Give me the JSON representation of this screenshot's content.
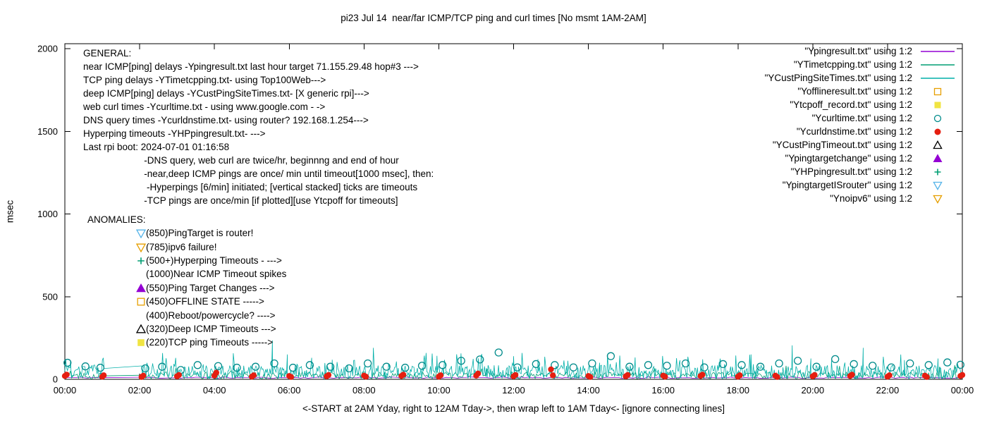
{
  "page": {
    "title": "pi23 Jul 14  near/far ICMP/TCP ping and curl times [No msmt 1AM-2AM]"
  },
  "colors": {
    "purple": "#9400D3",
    "green": "#009E73",
    "teal_line": "#00AFA8",
    "dark_cyan": "#008B8B",
    "orange": "#E69F00",
    "yellow": "#F0E442",
    "red": "#E51E10",
    "sky_blue": "#56B4E9",
    "black": "#000000"
  },
  "legend": [
    {
      "label": "\"Ypingresult.txt\" using 1:2",
      "marker": "line",
      "color": "#9400D3"
    },
    {
      "label": "\"YTimetcpping.txt\" using 1:2",
      "marker": "line",
      "color": "#009E73"
    },
    {
      "label": "\"YCustPingSiteTimes.txt\" using 1:2",
      "marker": "line",
      "color": "#00AFA8"
    },
    {
      "label": "\"Yofflineresult.txt\" using 1:2",
      "marker": "square-open",
      "color": "#E69F00"
    },
    {
      "label": "\"Ytcpoff_record.txt\" using 1:2",
      "marker": "square-filled",
      "color": "#F0E442"
    },
    {
      "label": "\"Ycurltime.txt\" using 1:2",
      "marker": "circle-open",
      "color": "#008B8B"
    },
    {
      "label": "\"Ycurldnstime.txt\" using 1:2",
      "marker": "circle-filled",
      "color": "#E51E10"
    },
    {
      "label": "\"YCustPingTimeout.txt\" using 1:2",
      "marker": "triangle-up-open",
      "color": "#000000"
    },
    {
      "label": "\"Ypingtargetchange\" using 1:2",
      "marker": "triangle-up-filled",
      "color": "#9400D3"
    },
    {
      "label": "\"YHPpingresult.txt\" using 1:2",
      "marker": "plus",
      "color": "#009E73"
    },
    {
      "label": "\"YpingtargetISrouter\" using 1:2",
      "marker": "triangle-down-open",
      "color": "#56B4E9"
    },
    {
      "label": "\"Ynoipv6\" using 1:2",
      "marker": "triangle-down-open",
      "color": "#E69F00"
    }
  ],
  "general_notes": [
    "GENERAL:",
    "near ICMP[ping] delays -Ypingresult.txt last hour target 71.155.29.48 hop#3 --->",
    "TCP ping delays -YTimetcpping.txt- using Top100Web--->",
    "deep ICMP[ping] delays -YCustPingSiteTimes.txt- [X generic rpi]--->",
    "web curl times -Ycurltime.txt - using www.google.com - ->",
    "DNS query times -Ycurldnstime.txt- using router? 192.168.1.254--->",
    "Hyperping timeouts -YHPpingresult.txt- --->",
    "Last rpi boot: 2024-07-01 01:16:58",
    "                       -DNS query, web curl are twice/hr, beginnng and end of hour",
    "                       -near,deep ICMP pings are once/ min until timeout[1000 msec], then:",
    "                        -Hyperpings [6/min] initiated; [vertical stacked] ticks are timeouts",
    "                       -TCP pings are once/min [if plotted][use Ytcpoff for timeouts]"
  ],
  "anomalies": {
    "heading": "ANOMALIES:",
    "items": [
      {
        "marker": "triangle-down-open",
        "color": "#56B4E9",
        "label": "(850)PingTarget is router!"
      },
      {
        "marker": "triangle-down-open",
        "color": "#E69F00",
        "label": "(785)ipv6 failure!"
      },
      {
        "marker": "plus",
        "color": "#009E73",
        "label": "(500+)Hyperping Timeouts - --->"
      },
      {
        "marker": "none",
        "color": "",
        "label": "(1000)Near ICMP Timeout spikes"
      },
      {
        "marker": "triangle-up-filled",
        "color": "#9400D3",
        "label": "(550)Ping Target Changes --->"
      },
      {
        "marker": "square-open",
        "color": "#E69F00",
        "label": "(450)OFFLINE STATE ----->"
      },
      {
        "marker": "none",
        "color": "",
        "label": "(400)Reboot/powercycle? ---->"
      },
      {
        "marker": "triangle-up-open",
        "color": "#000000",
        "label": "(320)Deep ICMP Timeouts --->"
      },
      {
        "marker": "square-filled",
        "color": "#F0E442",
        "label": "(220)TCP ping Timeouts ----->"
      }
    ]
  },
  "chart_data": {
    "type": "line",
    "title": "pi23 Jul 14  near/far ICMP/TCP ping and curl times [No msmt 1AM-2AM]",
    "xlabel": "<-START at 2AM Yday, right to 12AM Tday->, then wrap left to 1AM Tday<- [ignore connecting lines]",
    "ylabel": "msec",
    "xlim_hours": [
      0,
      24
    ],
    "ylim": [
      0,
      2000
    ],
    "yticks": [
      0,
      500,
      1000,
      1500,
      2000
    ],
    "xticks": [
      "00:00",
      "02:00",
      "04:00",
      "06:00",
      "08:00",
      "10:00",
      "12:00",
      "14:00",
      "16:00",
      "18:00",
      "20:00",
      "22:00",
      "00:00"
    ],
    "grid": false,
    "legend_position": "top-right-inside",
    "gap_hours": [
      1.05,
      2.05
    ],
    "series": [
      {
        "name": "Ypingresult.txt",
        "type": "line",
        "seed": 11,
        "color": "#9400D3",
        "approx": {
          "min": 6,
          "max": 14,
          "step_min": 6
        }
      },
      {
        "name": "YTimetcpping.txt",
        "type": "line",
        "seed": 22,
        "color": "#009E73",
        "approx": {
          "min": 2,
          "max": 45,
          "step_min": 2.2,
          "burst_chance": 0.025,
          "burst_max": 95
        }
      },
      {
        "name": "YCustPingSiteTimes.txt",
        "type": "line",
        "seed": 33,
        "color": "#00AFA8",
        "approx": {
          "min": 2,
          "max": 85,
          "step_min": 1.4,
          "burst_chance": 0.05,
          "burst_max": 160
        },
        "spikes": [
          [
            0.15,
            112
          ],
          [
            2.35,
            96
          ],
          [
            3.7,
            90
          ],
          [
            4.5,
            100
          ],
          [
            5.55,
            235
          ],
          [
            5.95,
            150
          ],
          [
            6.6,
            130
          ],
          [
            7.15,
            118
          ],
          [
            8.25,
            190
          ],
          [
            9.6,
            120
          ],
          [
            9.95,
            142
          ],
          [
            10.5,
            110
          ],
          [
            11.15,
            150
          ],
          [
            12.0,
            140
          ],
          [
            12.65,
            122
          ],
          [
            13.45,
            112
          ],
          [
            14.3,
            100
          ],
          [
            15.25,
            132
          ],
          [
            16.45,
            115
          ],
          [
            17.5,
            104
          ],
          [
            18.35,
            150
          ],
          [
            19.45,
            205
          ],
          [
            19.95,
            126
          ],
          [
            20.5,
            112
          ],
          [
            21.35,
            190
          ],
          [
            22.45,
            116
          ],
          [
            23.35,
            126
          ]
        ]
      },
      {
        "name": "Ycurltime.txt",
        "type": "points",
        "marker": "circle-open",
        "color": "#008B8B",
        "points": [
          [
            0.07,
            100
          ],
          [
            0.55,
            78
          ],
          [
            0.95,
            70
          ],
          [
            2.15,
            66
          ],
          [
            2.6,
            76
          ],
          [
            3.1,
            56
          ],
          [
            3.55,
            86
          ],
          [
            4.1,
            80
          ],
          [
            4.6,
            70
          ],
          [
            5.1,
            76
          ],
          [
            5.6,
            96
          ],
          [
            6.1,
            70
          ],
          [
            6.55,
            86
          ],
          [
            7.1,
            76
          ],
          [
            7.6,
            66
          ],
          [
            8.1,
            96
          ],
          [
            8.6,
            76
          ],
          [
            9.1,
            70
          ],
          [
            9.55,
            82
          ],
          [
            10.1,
            86
          ],
          [
            10.6,
            112
          ],
          [
            11.1,
            120
          ],
          [
            11.6,
            162
          ],
          [
            12.1,
            72
          ],
          [
            12.6,
            92
          ],
          [
            13.1,
            86
          ],
          [
            13.6,
            72
          ],
          [
            14.1,
            96
          ],
          [
            14.6,
            140
          ],
          [
            15.1,
            76
          ],
          [
            15.6,
            86
          ],
          [
            16.1,
            82
          ],
          [
            16.6,
            96
          ],
          [
            17.1,
            72
          ],
          [
            17.6,
            92
          ],
          [
            18.1,
            86
          ],
          [
            18.6,
            76
          ],
          [
            19.1,
            96
          ],
          [
            19.6,
            112
          ],
          [
            20.1,
            76
          ],
          [
            20.6,
            122
          ],
          [
            21.1,
            92
          ],
          [
            21.6,
            82
          ],
          [
            22.1,
            72
          ],
          [
            22.6,
            96
          ],
          [
            23.1,
            86
          ],
          [
            23.6,
            102
          ],
          [
            23.95,
            88
          ]
        ]
      },
      {
        "name": "Ycurldnstime.txt",
        "type": "points",
        "marker": "circle-filled",
        "color": "#E51E10",
        "points": [
          [
            0.0,
            20
          ],
          [
            0.05,
            28
          ],
          [
            1.0,
            16
          ],
          [
            1.04,
            24
          ],
          [
            2.05,
            14
          ],
          [
            2.1,
            22
          ],
          [
            3.0,
            18
          ],
          [
            3.05,
            26
          ],
          [
            4.0,
            22
          ],
          [
            4.05,
            40
          ],
          [
            5.0,
            16
          ],
          [
            5.05,
            24
          ],
          [
            6.0,
            20
          ],
          [
            6.05,
            14
          ],
          [
            7.0,
            18
          ],
          [
            7.05,
            26
          ],
          [
            8.0,
            22
          ],
          [
            8.05,
            16
          ],
          [
            9.0,
            20
          ],
          [
            9.05,
            28
          ],
          [
            10.0,
            16
          ],
          [
            10.05,
            24
          ],
          [
            11.0,
            22
          ],
          [
            11.05,
            35
          ],
          [
            12.0,
            18
          ],
          [
            12.05,
            26
          ],
          [
            13.0,
            60
          ],
          [
            13.05,
            24
          ],
          [
            14.0,
            20
          ],
          [
            14.05,
            14
          ],
          [
            15.0,
            18
          ],
          [
            15.05,
            26
          ],
          [
            16.0,
            22
          ],
          [
            16.05,
            16
          ],
          [
            17.0,
            20
          ],
          [
            17.05,
            28
          ],
          [
            18.0,
            16
          ],
          [
            18.05,
            24
          ],
          [
            19.0,
            22
          ],
          [
            19.05,
            14
          ],
          [
            20.0,
            18
          ],
          [
            20.05,
            26
          ],
          [
            21.0,
            20
          ],
          [
            21.05,
            28
          ],
          [
            22.0,
            16
          ],
          [
            22.05,
            24
          ],
          [
            23.0,
            22
          ],
          [
            23.05,
            14
          ],
          [
            23.95,
            20
          ],
          [
            24.0,
            26
          ]
        ]
      }
    ]
  }
}
